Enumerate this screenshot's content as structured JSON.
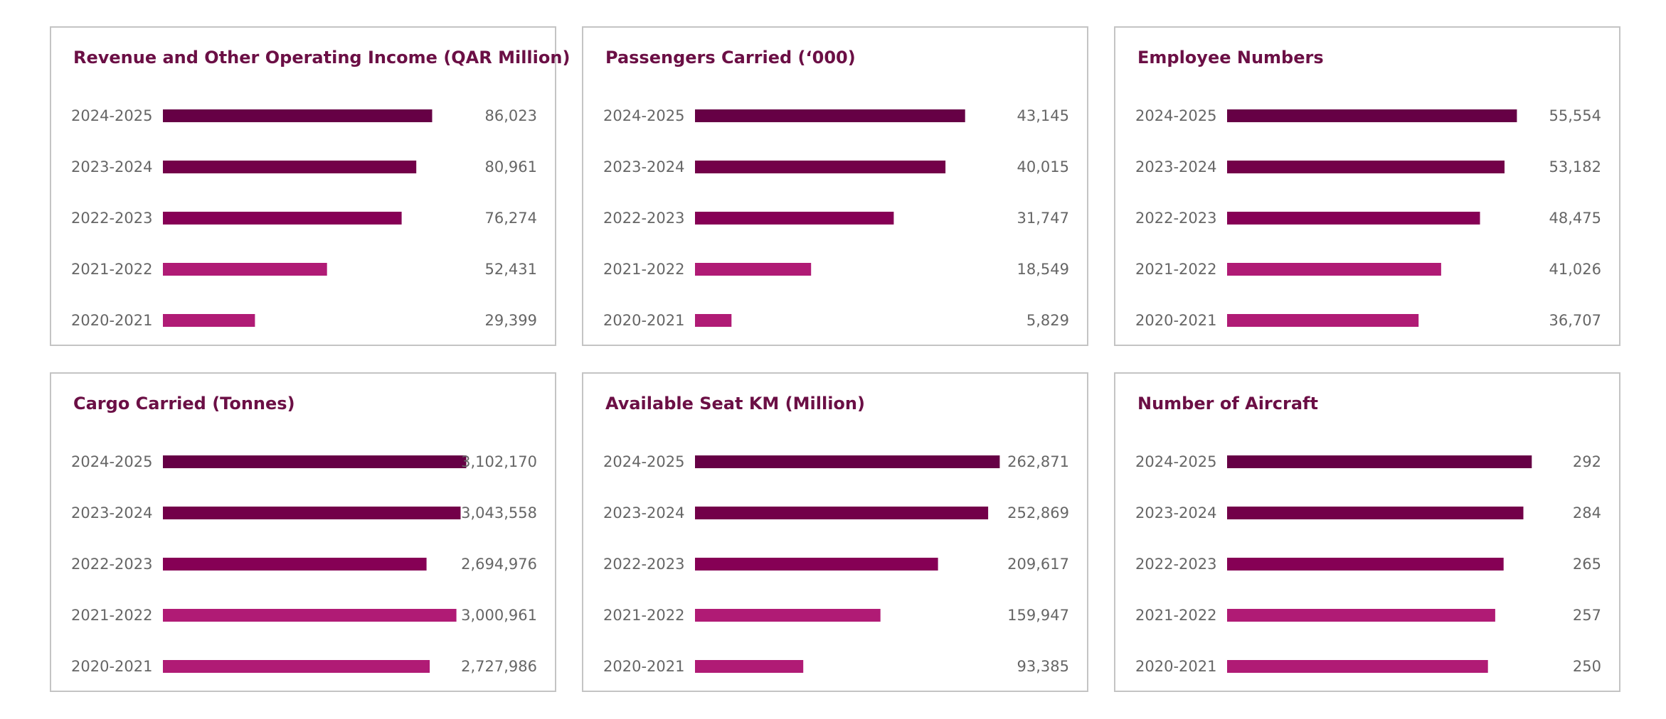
{
  "colors": {
    "bar_2024_2025": "#660045",
    "bar_2023_2024": "#730049",
    "bar_2022_2023": "#860055",
    "bar_2021_2022": "#b01b75",
    "bar_2020_2021": "#b01b75",
    "title": "#6b0f45",
    "text": "#666666",
    "border": "#c4c4c4"
  },
  "chart_data": [
    {
      "type": "bar",
      "orientation": "horizontal",
      "title": "Revenue and Other Operating Income (QAR Million)",
      "categories": [
        "2024-2025",
        "2023-2024",
        "2022-2023",
        "2021-2022",
        "2020-2021"
      ],
      "values": [
        86023,
        80961,
        76274,
        52431,
        29399
      ],
      "value_labels": [
        "86,023",
        "80,961",
        "76,274",
        "52,431",
        "29,399"
      ],
      "xlim": [
        0,
        100000
      ]
    },
    {
      "type": "bar",
      "orientation": "horizontal",
      "title": "Passengers Carried (‘000)",
      "categories": [
        "2024-2025",
        "2023-2024",
        "2022-2023",
        "2021-2022",
        "2020-2021"
      ],
      "values": [
        43145,
        40015,
        31747,
        18549,
        5829
      ],
      "value_labels": [
        "43,145",
        "40,015",
        "31,747",
        "18,549",
        "5,829"
      ],
      "xlim": [
        0,
        50000
      ]
    },
    {
      "type": "bar",
      "orientation": "horizontal",
      "title": "Employee Numbers",
      "categories": [
        "2024-2025",
        "2023-2024",
        "2022-2023",
        "2021-2022",
        "2020-2021"
      ],
      "values": [
        55554,
        53182,
        48475,
        41026,
        36707
      ],
      "value_labels": [
        "55,554",
        "53,182",
        "48,475",
        "41,026",
        "36,707"
      ],
      "xlim": [
        0,
        60000
      ]
    },
    {
      "type": "bar",
      "orientation": "horizontal",
      "title": "Cargo Carried (Tonnes)",
      "categories": [
        "2024-2025",
        "2023-2024",
        "2022-2023",
        "2021-2022",
        "2020-2021"
      ],
      "values": [
        3102170,
        3043558,
        2694976,
        3000961,
        2727986
      ],
      "value_labels": [
        "3,102,170",
        "3,043,558",
        "2,694,976",
        "3,000,961",
        "2,727,986"
      ],
      "xlim": [
        0,
        3200000
      ]
    },
    {
      "type": "bar",
      "orientation": "horizontal",
      "title": "Available Seat KM (Million)",
      "categories": [
        "2024-2025",
        "2023-2024",
        "2022-2023",
        "2021-2022",
        "2020-2021"
      ],
      "values": [
        262871,
        252869,
        209617,
        159947,
        93385
      ],
      "value_labels": [
        "262,871",
        "252,869",
        "209,617",
        "159,947",
        "93,385"
      ],
      "xlim": [
        0,
        270000
      ]
    },
    {
      "type": "bar",
      "orientation": "horizontal",
      "title": "Number of Aircraft",
      "categories": [
        "2024-2025",
        "2023-2024",
        "2022-2023",
        "2021-2022",
        "2020-2021"
      ],
      "values": [
        292,
        284,
        265,
        257,
        250
      ],
      "value_labels": [
        "292",
        "284",
        "265",
        "257",
        "250"
      ],
      "xlim": [
        0,
        300
      ]
    }
  ]
}
